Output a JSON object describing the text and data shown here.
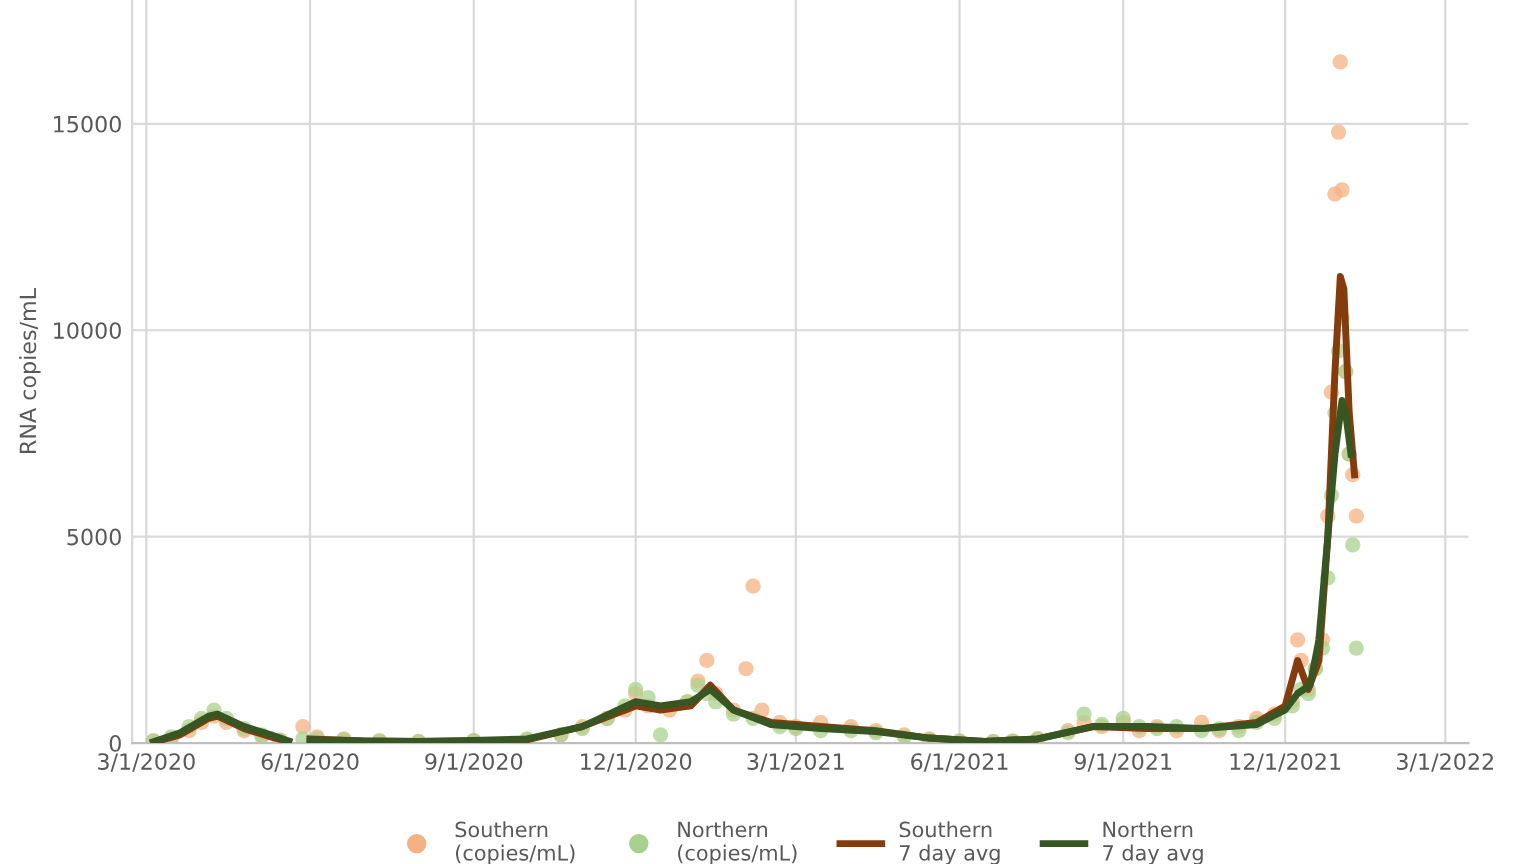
{
  "chart_data": {
    "type": "scatter",
    "ylabel": "RNA copies/mL",
    "xlim": [
      "2020-02-22",
      "2022-03-14"
    ],
    "ylim": [
      0,
      18000
    ],
    "yticks": [
      0,
      5000,
      10000,
      15000
    ],
    "xticks": [
      {
        "value": "2020-03-01",
        "label": "3/1/2020"
      },
      {
        "value": "2020-06-01",
        "label": "6/1/2020"
      },
      {
        "value": "2020-09-01",
        "label": "9/1/2020"
      },
      {
        "value": "2020-12-01",
        "label": "12/1/2020"
      },
      {
        "value": "2021-03-01",
        "label": "3/1/2021"
      },
      {
        "value": "2021-06-01",
        "label": "6/1/2021"
      },
      {
        "value": "2021-09-01",
        "label": "9/1/2021"
      },
      {
        "value": "2021-12-01",
        "label": "12/1/2021"
      },
      {
        "value": "2022-03-01",
        "label": "3/1/2022"
      }
    ],
    "grid": true,
    "legend": "bottom",
    "series": [
      {
        "name": "Southern\n(copies/mL)",
        "marker": "circle",
        "color": "#f4b183",
        "x": [
          "2020-03-05",
          "2020-03-15",
          "2020-03-25",
          "2020-04-01",
          "2020-04-08",
          "2020-04-15",
          "2020-04-25",
          "2020-05-05",
          "2020-05-15",
          "2020-05-28",
          "2020-06-05",
          "2020-06-20",
          "2020-07-10",
          "2020-08-01",
          "2020-09-01",
          "2020-10-01",
          "2020-10-20",
          "2020-11-01",
          "2020-11-15",
          "2020-11-25",
          "2020-12-01",
          "2020-12-08",
          "2020-12-20",
          "2020-12-30",
          "2021-01-05",
          "2021-01-10",
          "2021-01-15",
          "2021-01-25",
          "2021-02-01",
          "2021-02-05",
          "2021-02-10",
          "2021-02-20",
          "2021-03-01",
          "2021-03-15",
          "2021-04-01",
          "2021-04-15",
          "2021-05-01",
          "2021-05-15",
          "2021-06-01",
          "2021-06-20",
          "2021-07-01",
          "2021-07-15",
          "2021-08-01",
          "2021-08-10",
          "2021-08-20",
          "2021-09-01",
          "2021-09-10",
          "2021-09-20",
          "2021-10-01",
          "2021-10-15",
          "2021-10-25",
          "2021-11-05",
          "2021-11-15",
          "2021-11-25",
          "2021-12-05",
          "2021-12-08",
          "2021-12-10",
          "2021-12-14",
          "2021-12-18",
          "2021-12-22",
          "2021-12-25",
          "2021-12-27",
          "2021-12-29",
          "2021-12-31",
          "2022-01-01",
          "2022-01-02",
          "2022-01-04",
          "2022-01-06",
          "2022-01-08",
          "2022-01-10"
        ],
        "values": [
          50,
          100,
          300,
          500,
          650,
          500,
          300,
          150,
          50,
          400,
          150,
          100,
          50,
          30,
          50,
          80,
          200,
          400,
          600,
          800,
          1200,
          900,
          800,
          1000,
          1500,
          2000,
          1200,
          800,
          1800,
          3800,
          800,
          500,
          400,
          500,
          400,
          300,
          200,
          100,
          50,
          40,
          50,
          100,
          300,
          500,
          400,
          500,
          300,
          400,
          300,
          500,
          300,
          400,
          600,
          700,
          1000,
          2500,
          2000,
          1300,
          1800,
          2500,
          5500,
          8500,
          13300,
          14800,
          16500,
          13400,
          9000,
          7000,
          6500,
          5500
        ]
      },
      {
        "name": "Northern\n(copies/mL)",
        "marker": "circle",
        "color": "#a9d18e",
        "x": [
          "2020-03-05",
          "2020-03-15",
          "2020-03-25",
          "2020-04-01",
          "2020-04-08",
          "2020-04-15",
          "2020-04-25",
          "2020-05-05",
          "2020-05-15",
          "2020-05-28",
          "2020-06-05",
          "2020-06-20",
          "2020-07-10",
          "2020-08-01",
          "2020-09-01",
          "2020-10-01",
          "2020-10-20",
          "2020-11-01",
          "2020-11-15",
          "2020-11-25",
          "2020-12-01",
          "2020-12-08",
          "2020-12-15",
          "2020-12-30",
          "2021-01-05",
          "2021-01-10",
          "2021-01-15",
          "2021-01-25",
          "2021-02-05",
          "2021-02-20",
          "2021-03-01",
          "2021-03-15",
          "2021-04-01",
          "2021-04-15",
          "2021-05-01",
          "2021-05-15",
          "2021-06-01",
          "2021-06-20",
          "2021-07-01",
          "2021-07-15",
          "2021-08-01",
          "2021-08-10",
          "2021-08-20",
          "2021-09-01",
          "2021-09-10",
          "2021-09-20",
          "2021-10-01",
          "2021-10-15",
          "2021-10-25",
          "2021-11-05",
          "2021-11-15",
          "2021-11-25",
          "2021-12-05",
          "2021-12-10",
          "2021-12-14",
          "2021-12-18",
          "2021-12-22",
          "2021-12-25",
          "2021-12-27",
          "2021-12-29",
          "2021-12-31",
          "2022-01-02",
          "2022-01-04",
          "2022-01-06",
          "2022-01-08",
          "2022-01-10"
        ],
        "values": [
          50,
          150,
          400,
          600,
          800,
          600,
          350,
          200,
          80,
          100,
          100,
          80,
          50,
          40,
          60,
          100,
          200,
          350,
          600,
          900,
          1300,
          1100,
          200,
          1000,
          1400,
          1200,
          1000,
          700,
          600,
          400,
          350,
          300,
          300,
          250,
          150,
          80,
          40,
          30,
          40,
          100,
          250,
          700,
          450,
          600,
          400,
          350,
          400,
          300,
          350,
          300,
          500,
          600,
          900,
          1300,
          1200,
          1800,
          2300,
          4000,
          6000,
          8000,
          9500,
          10300,
          9000,
          7000,
          4800,
          2300
        ]
      },
      {
        "name": "Southern\n7 day avg",
        "type": "line",
        "marker": "none",
        "line_style": "solid",
        "color": "#843c0c",
        "x": [
          "2020-03-05",
          "2020-03-20",
          "2020-04-05",
          "2020-04-10",
          "2020-04-25",
          "2020-05-10",
          "2020-05-20",
          "2020-05-26",
          "2020-06-01",
          "2020-07-01",
          "2020-08-01",
          "2020-09-01",
          "2020-10-01",
          "2020-11-01",
          "2020-12-01",
          "2020-12-15",
          "2021-01-01",
          "2021-01-12",
          "2021-01-25",
          "2021-02-15",
          "2021-03-15",
          "2021-04-15",
          "2021-05-15",
          "2021-06-15",
          "2021-07-15",
          "2021-08-15",
          "2021-09-15",
          "2021-10-15",
          "2021-11-15",
          "2021-12-01",
          "2021-12-08",
          "2021-12-14",
          "2021-12-20",
          "2021-12-25",
          "2021-12-29",
          "2022-01-01",
          "2022-01-03",
          "2022-01-06",
          "2022-01-09"
        ],
        "values": [
          20,
          200,
          600,
          650,
          350,
          150,
          30,
          null,
          100,
          50,
          40,
          50,
          80,
          400,
          900,
          800,
          900,
          1400,
          800,
          500,
          400,
          300,
          120,
          40,
          100,
          400,
          350,
          350,
          500,
          900,
          2000,
          1300,
          2000,
          5000,
          9000,
          11300,
          11000,
          8000,
          6500
        ]
      },
      {
        "name": "Northern\n7 day avg",
        "type": "line",
        "marker": "none",
        "line_style": "solid",
        "color": "#375623",
        "x": [
          "2020-03-05",
          "2020-03-20",
          "2020-04-05",
          "2020-04-10",
          "2020-04-25",
          "2020-05-10",
          "2020-05-20",
          "2020-05-26",
          "2020-06-01",
          "2020-07-01",
          "2020-08-01",
          "2020-09-01",
          "2020-10-01",
          "2020-11-01",
          "2020-12-01",
          "2020-12-15",
          "2021-01-01",
          "2021-01-12",
          "2021-01-25",
          "2021-02-15",
          "2021-03-15",
          "2021-04-15",
          "2021-05-15",
          "2021-06-15",
          "2021-07-15",
          "2021-08-15",
          "2021-09-15",
          "2021-10-15",
          "2021-11-15",
          "2021-12-01",
          "2021-12-08",
          "2021-12-15",
          "2021-12-20",
          "2021-12-25",
          "2021-12-29",
          "2022-01-02",
          "2022-01-04",
          "2022-01-07"
        ],
        "values": [
          30,
          250,
          650,
          700,
          400,
          200,
          50,
          null,
          80,
          50,
          40,
          60,
          100,
          400,
          1000,
          900,
          1000,
          1300,
          800,
          450,
          350,
          280,
          120,
          40,
          100,
          400,
          400,
          350,
          450,
          800,
          1200,
          1400,
          2500,
          5000,
          7000,
          8300,
          8000,
          7000
        ]
      }
    ]
  }
}
